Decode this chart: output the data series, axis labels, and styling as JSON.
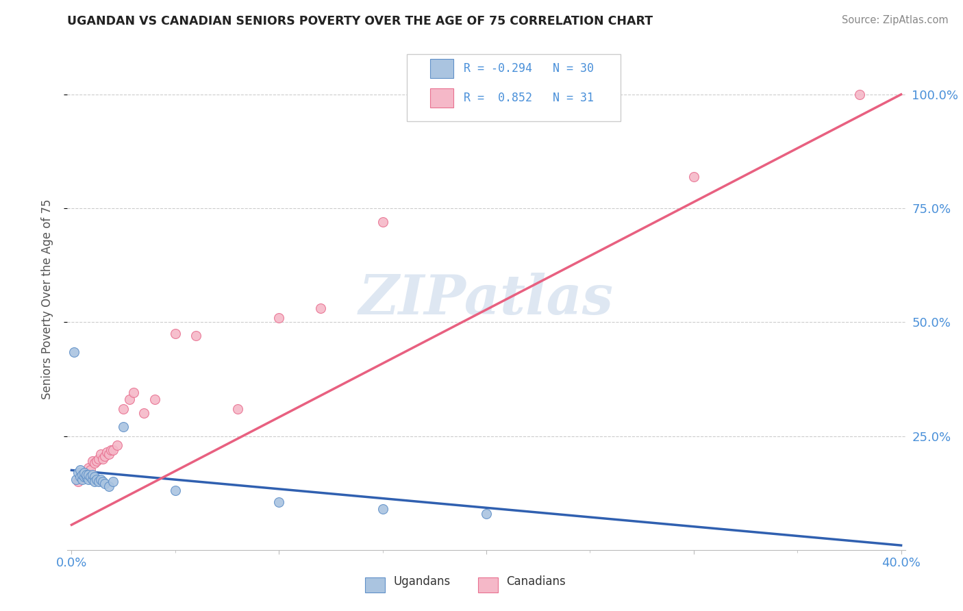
{
  "title": "UGANDAN VS CANADIAN SENIORS POVERTY OVER THE AGE OF 75 CORRELATION CHART",
  "source_text": "Source: ZipAtlas.com",
  "ylabel": "Seniors Poverty Over the Age of 75",
  "watermark": "ZIPatlas",
  "ugandan_color": "#aac4e0",
  "canadian_color": "#f5b8c8",
  "ugandan_edge_color": "#6090c8",
  "canadian_edge_color": "#e87090",
  "ugandan_line_color": "#3060b0",
  "canadian_line_color": "#e86080",
  "title_color": "#222222",
  "axis_label_color": "#4a90d9",
  "grid_color": "#cccccc",
  "background_color": "#ffffff",
  "legend_r_color": "#4a90d9",
  "ugandan_x": [
    0.002,
    0.003,
    0.004,
    0.004,
    0.005,
    0.005,
    0.006,
    0.006,
    0.007,
    0.007,
    0.008,
    0.008,
    0.009,
    0.01,
    0.01,
    0.011,
    0.011,
    0.012,
    0.013,
    0.014,
    0.015,
    0.016,
    0.018,
    0.02,
    0.025,
    0.05,
    0.1,
    0.15,
    0.2,
    0.001
  ],
  "ugandan_y": [
    0.155,
    0.17,
    0.16,
    0.175,
    0.155,
    0.165,
    0.16,
    0.17,
    0.16,
    0.165,
    0.155,
    0.165,
    0.16,
    0.155,
    0.165,
    0.16,
    0.15,
    0.155,
    0.15,
    0.155,
    0.15,
    0.145,
    0.14,
    0.15,
    0.27,
    0.13,
    0.105,
    0.09,
    0.08,
    0.435
  ],
  "canadian_x": [
    0.003,
    0.005,
    0.006,
    0.007,
    0.008,
    0.009,
    0.01,
    0.011,
    0.012,
    0.013,
    0.014,
    0.015,
    0.016,
    0.017,
    0.018,
    0.019,
    0.02,
    0.022,
    0.025,
    0.028,
    0.03,
    0.035,
    0.04,
    0.05,
    0.06,
    0.08,
    0.1,
    0.12,
    0.15,
    0.3,
    0.38
  ],
  "canadian_y": [
    0.15,
    0.16,
    0.165,
    0.17,
    0.18,
    0.175,
    0.195,
    0.19,
    0.195,
    0.2,
    0.21,
    0.2,
    0.205,
    0.215,
    0.21,
    0.22,
    0.22,
    0.23,
    0.31,
    0.33,
    0.345,
    0.3,
    0.33,
    0.475,
    0.47,
    0.31,
    0.51,
    0.53,
    0.72,
    0.82,
    1.0
  ],
  "ugandan_trend_x": [
    0.0,
    0.4
  ],
  "ugandan_trend_y": [
    0.175,
    0.01
  ],
  "canadian_trend_x": [
    0.0,
    0.4
  ],
  "canadian_trend_y": [
    0.055,
    1.0
  ],
  "xlim": [
    -0.002,
    0.402
  ],
  "ylim": [
    0.0,
    1.1
  ],
  "yticks": [
    0.25,
    0.5,
    0.75,
    1.0
  ],
  "ytick_labels": [
    "25.0%",
    "50.0%",
    "75.0%",
    "100.0%"
  ],
  "xtick_positions": [
    0.0,
    0.1,
    0.2,
    0.3,
    0.4
  ],
  "xtick_labels_show": [
    "0.0%",
    "",
    "",
    "",
    "40.0%"
  ]
}
